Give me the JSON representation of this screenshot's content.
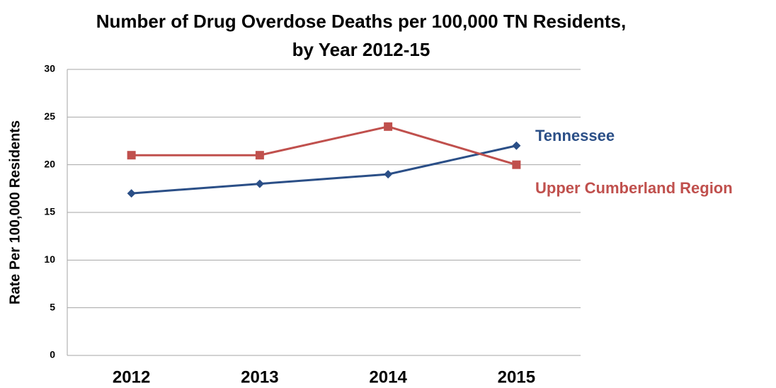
{
  "chart_data": {
    "type": "line",
    "title": [
      "Number of Drug Overdose Deaths per 100,000 TN Residents,",
      "by Year 2012-15"
    ],
    "y_label": "Rate Per 100,000 Residents",
    "categories": [
      "2012",
      "2013",
      "2014",
      "2015"
    ],
    "series": [
      {
        "name": "Tennessee",
        "color": "#2b4f87",
        "marker": "diamond",
        "values": [
          17,
          18,
          19,
          22
        ]
      },
      {
        "name": "Upper Cumberland Region",
        "color": "#c0504d",
        "marker": "square",
        "values": [
          21,
          21,
          24,
          20
        ]
      }
    ],
    "ylim": [
      0,
      30
    ],
    "yticks": [
      0,
      5,
      10,
      15,
      20,
      25,
      30
    ],
    "grid": true
  }
}
